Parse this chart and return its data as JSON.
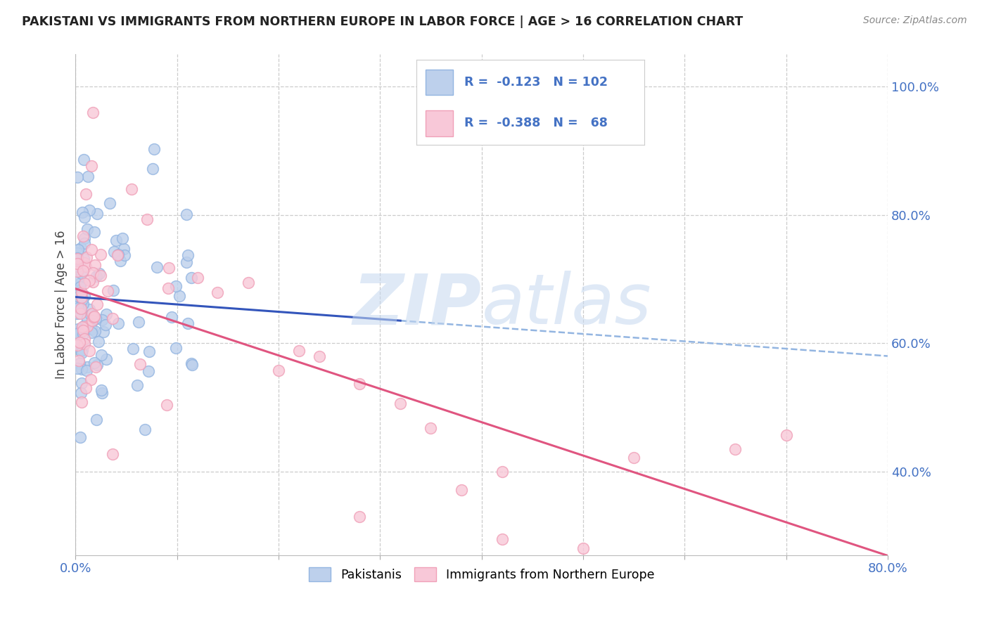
{
  "title": "PAKISTANI VS IMMIGRANTS FROM NORTHERN EUROPE IN LABOR FORCE | AGE > 16 CORRELATION CHART",
  "source": "Source: ZipAtlas.com",
  "ylabel": "In Labor Force | Age > 16",
  "xmin": 0.0,
  "xmax": 0.8,
  "ymin": 0.27,
  "ymax": 1.05,
  "blue_color": "#93B5E1",
  "blue_fill": "#BDD0EC",
  "pink_color": "#F0A0B8",
  "pink_fill": "#F8C8D8",
  "blue_line_color": "#3355BB",
  "pink_line_color": "#E05580",
  "dashed_line_color": "#93B5E1",
  "legend_R_blue": "-0.123",
  "legend_N_blue": "102",
  "legend_R_pink": "-0.388",
  "legend_N_pink": "68",
  "watermark_zip": "ZIP",
  "watermark_atlas": "atlas",
  "blue_intercept": 0.672,
  "blue_slope": -0.115,
  "pink_intercept": 0.685,
  "pink_slope": -0.52,
  "seed": 77
}
